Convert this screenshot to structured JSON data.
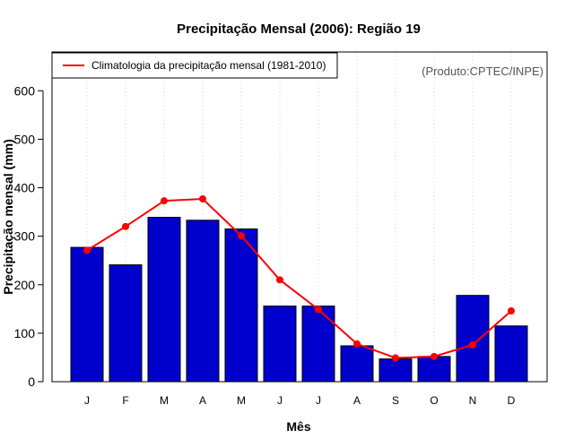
{
  "chart_data": {
    "type": "bar",
    "title": "Precipitação Mensal (2006): Região 19",
    "xlabel": "Mês",
    "ylabel": "Precipitação mensal (mm)",
    "ylim": [
      0,
      680
    ],
    "yticks": [
      0,
      100,
      200,
      300,
      400,
      500,
      600
    ],
    "grid": "vertical-dotted",
    "categories": [
      "J",
      "F",
      "M",
      "A",
      "M",
      "J",
      "J",
      "A",
      "S",
      "O",
      "N",
      "D"
    ],
    "series": [
      {
        "name": "Precipitação mensal (2006)",
        "kind": "bar",
        "color": "#0000CD",
        "values": [
          277,
          241,
          339,
          333,
          315,
          156,
          156,
          74,
          47,
          52,
          178,
          115
        ]
      },
      {
        "name": "Climatologia da precipitação mensal (1981-2010)",
        "kind": "line",
        "color": "#FF0000",
        "values": [
          271,
          320,
          373,
          377,
          301,
          210,
          149,
          78,
          49,
          52,
          76,
          146
        ]
      }
    ],
    "legend": {
      "position": "top-left",
      "entries": [
        "Climatologia da precipitação mensal (1981-2010)"
      ]
    },
    "annotation": "(Produto:CPTEC/INPE)"
  }
}
